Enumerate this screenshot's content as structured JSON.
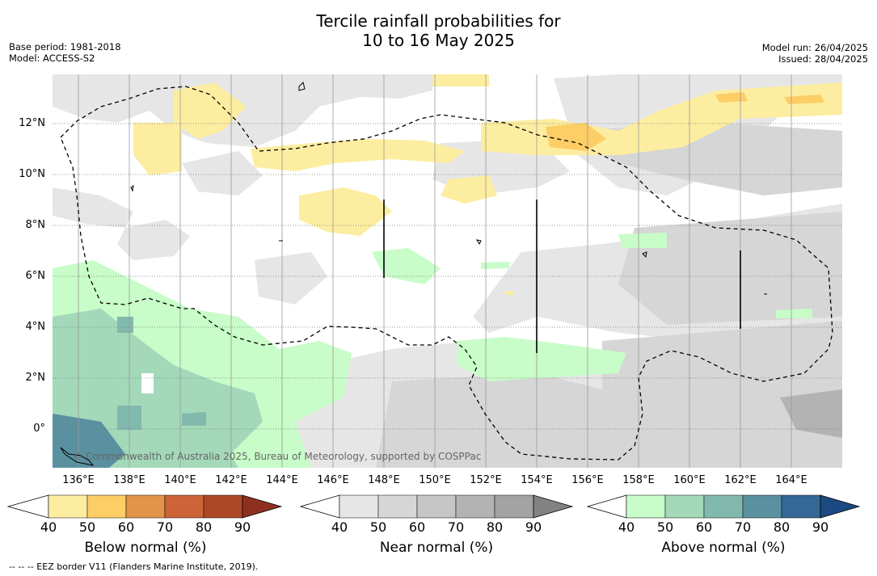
{
  "title_line1": "Tercile rainfall probabilities for",
  "title_line2": "10 to 16 May 2025",
  "base_period": "Base period: 1981-2018",
  "model": "Model: ACCESS-S2",
  "model_run": "Model run: 26/04/2025",
  "issued": "Issued: 28/04/2025",
  "copyright": "© Commonwealth of Australia 2025, Bureau of Meteorology, supported by COSPPac",
  "footnote": "--  --  -- EEZ border V11 (Flanders Marine Institute, 2019).",
  "lat_ticks": [
    "12°N",
    "10°N",
    "8°N",
    "6°N",
    "4°N",
    "2°N",
    "0°"
  ],
  "lon_ticks": [
    "136°E",
    "138°E",
    "140°E",
    "142°E",
    "144°E",
    "146°E",
    "148°E",
    "150°E",
    "152°E",
    "154°E",
    "156°E",
    "158°E",
    "160°E",
    "162°E",
    "164°E"
  ],
  "colorbars": [
    {
      "label": "Below normal (%)",
      "ticks": [
        "40",
        "50",
        "60",
        "70",
        "80",
        "90"
      ],
      "colors": [
        "#ffffff",
        "#fdeda0",
        "#fdcd66",
        "#e29449",
        "#cd6437",
        "#ad4826",
        "#8e3020"
      ]
    },
    {
      "label": "Near normal (%)",
      "ticks": [
        "40",
        "50",
        "60",
        "70",
        "80",
        "90"
      ],
      "colors": [
        "#ffffff",
        "#e6e6e6",
        "#d6d6d6",
        "#c6c6c6",
        "#b3b3b3",
        "#a3a3a3",
        "#828282"
      ]
    },
    {
      "label": "Above normal (%)",
      "ticks": [
        "40",
        "50",
        "60",
        "70",
        "80",
        "90"
      ],
      "colors": [
        "#ffffff",
        "#c8fcc8",
        "#a3d9b9",
        "#82b9ad",
        "#5a91a0",
        "#346895",
        "#1b4a82"
      ]
    }
  ]
}
